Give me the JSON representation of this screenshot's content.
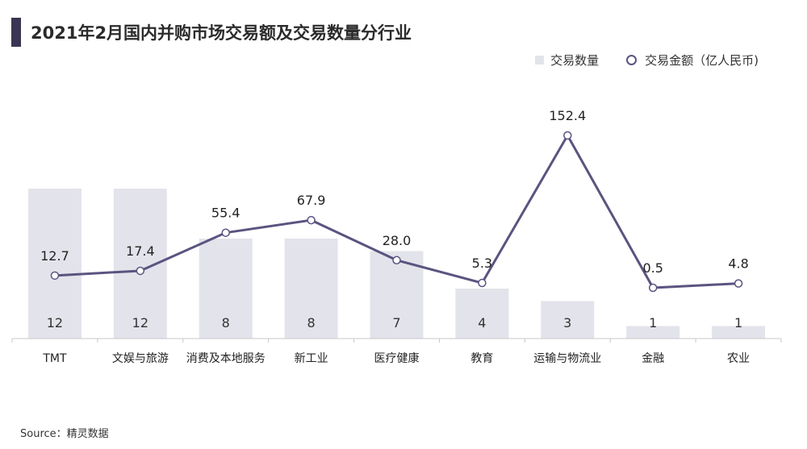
{
  "title": "2021年2月国内并购市场交易额及交易数量分行业",
  "source": "Source：精灵数据",
  "colors": {
    "accent": "#3a3552",
    "bar": "#e3e3eb",
    "line": "#5a5480",
    "marker_fill": "#ffffff",
    "axis": "#c8c8c8"
  },
  "chart_data": {
    "type": "bar",
    "categories": [
      "TMT",
      "文娱与旅游",
      "消费及本地服务",
      "新工业",
      "医疗健康",
      "教育",
      "运输与物流业",
      "金融",
      "农业"
    ],
    "series": [
      {
        "name": "交易数量",
        "type": "bar",
        "values": [
          12,
          12,
          8,
          8,
          7,
          4,
          3,
          1,
          1
        ],
        "labels": [
          "12",
          "12",
          "8",
          "8",
          "7",
          "4",
          "3",
          "1",
          "1"
        ]
      },
      {
        "name": "交易金额（亿人民币)",
        "type": "line",
        "values": [
          12.7,
          17.4,
          55.4,
          67.9,
          28.0,
          5.3,
          152.4,
          0.5,
          4.8
        ],
        "labels": [
          "12.7",
          "17.4",
          "55.4",
          "67.9",
          "28.0",
          "5.3",
          "152.4",
          "0.5",
          "4.8"
        ]
      }
    ],
    "legend_position": "top-right",
    "grid": false
  }
}
